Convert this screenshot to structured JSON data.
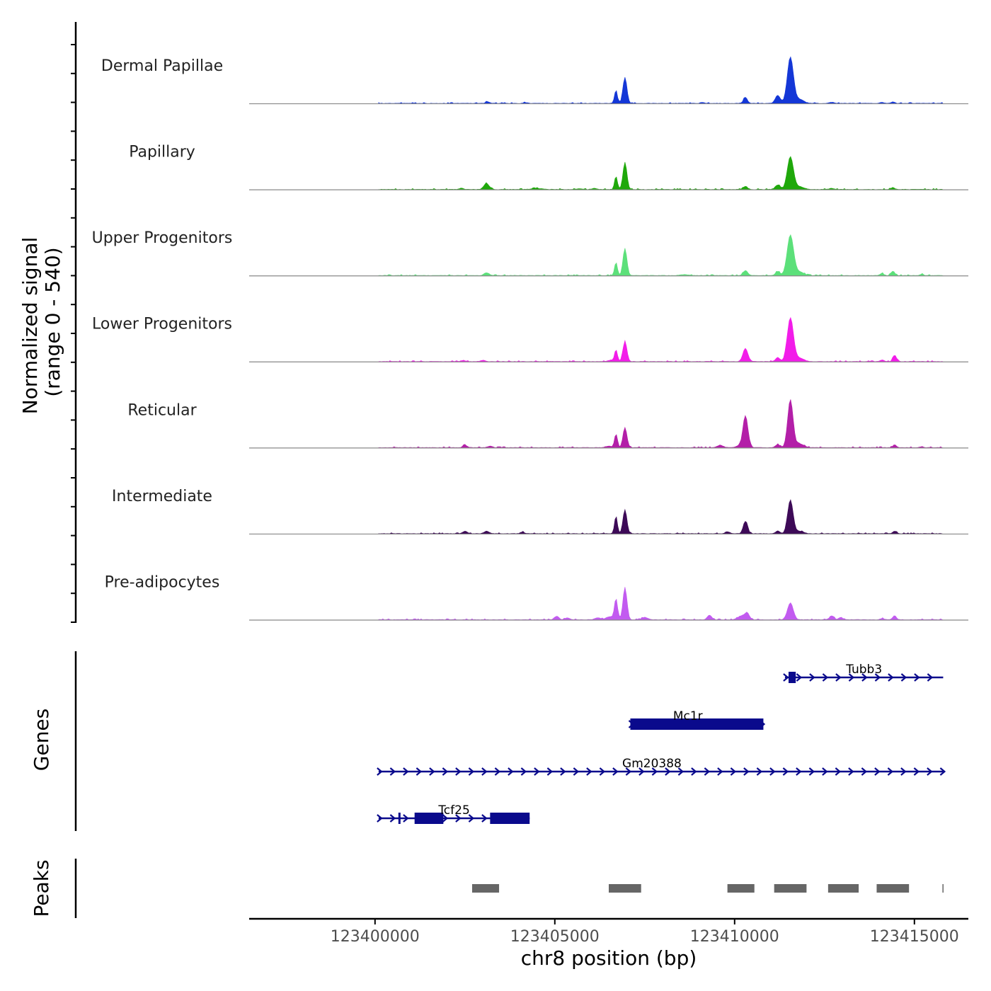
{
  "chart_data": {
    "type": "area",
    "title": "",
    "xlabel": "chr8 position (bp)",
    "ylabel": "Normalized signal",
    "ylabel_range": "(range 0 - 540)",
    "ylim": [
      0,
      540
    ],
    "xlim": [
      123396500,
      123416500
    ],
    "x_ticks": [
      123400000,
      123405000,
      123410000,
      123415000
    ],
    "x_tick_labels": [
      "123400000",
      "123405000",
      "123410000",
      "123415000"
    ],
    "signal_start": 123400100,
    "signal_end": 123415800,
    "tracks": [
      {
        "name": "Dermal Papillae",
        "color": "#1437d7",
        "peaks": [
          [
            123403130,
            8,
            60
          ],
          [
            123404200,
            4,
            60
          ],
          [
            123406700,
            66,
            40
          ],
          [
            123406950,
            130,
            55
          ],
          [
            123409100,
            4,
            60
          ],
          [
            123410300,
            30,
            55
          ],
          [
            123411200,
            40,
            70
          ],
          [
            123411550,
            230,
            85
          ],
          [
            123411800,
            20,
            120
          ],
          [
            123412700,
            6,
            60
          ],
          [
            123414100,
            6,
            50
          ],
          [
            123414400,
            8,
            50
          ]
        ]
      },
      {
        "name": "Papillary",
        "color": "#1fa80b",
        "peaks": [
          [
            123402400,
            6,
            60
          ],
          [
            123403100,
            30,
            75
          ],
          [
            123404500,
            5,
            150
          ],
          [
            123405700,
            4,
            80
          ],
          [
            123406100,
            6,
            60
          ],
          [
            123406700,
            66,
            40
          ],
          [
            123406950,
            135,
            55
          ],
          [
            123410300,
            16,
            55
          ],
          [
            123411200,
            22,
            70
          ],
          [
            123411550,
            162,
            85
          ],
          [
            123411800,
            14,
            120
          ],
          [
            123412700,
            6,
            60
          ],
          [
            123414400,
            10,
            50
          ]
        ]
      },
      {
        "name": "Upper Progenitors",
        "color": "#5ce07a",
        "peaks": [
          [
            123403100,
            14,
            70
          ],
          [
            123406700,
            66,
            40
          ],
          [
            123406950,
            135,
            55
          ],
          [
            123408600,
            4,
            100
          ],
          [
            123410300,
            25,
            60
          ],
          [
            123411200,
            20,
            60
          ],
          [
            123411550,
            200,
            90
          ],
          [
            123411800,
            18,
            120
          ],
          [
            123414100,
            10,
            50
          ],
          [
            123414400,
            22,
            50
          ],
          [
            123415200,
            6,
            50
          ]
        ]
      },
      {
        "name": "Lower Progenitors",
        "color": "#f21ce9",
        "peaks": [
          [
            123402450,
            6,
            60
          ],
          [
            123403000,
            6,
            60
          ],
          [
            123406550,
            8,
            60
          ],
          [
            123406700,
            60,
            40
          ],
          [
            123406950,
            100,
            55
          ],
          [
            123410300,
            65,
            70
          ],
          [
            123411200,
            20,
            60
          ],
          [
            123411550,
            218,
            85
          ],
          [
            123411800,
            18,
            120
          ],
          [
            123414100,
            8,
            50
          ],
          [
            123414450,
            32,
            50
          ]
        ]
      },
      {
        "name": "Reticular",
        "color": "#b31fa8",
        "peaks": [
          [
            123402500,
            12,
            60
          ],
          [
            123403200,
            8,
            60
          ],
          [
            123406500,
            8,
            80
          ],
          [
            123406700,
            68,
            40
          ],
          [
            123406950,
            100,
            55
          ],
          [
            123409600,
            12,
            80
          ],
          [
            123410100,
            8,
            80
          ],
          [
            123410300,
            160,
            70
          ],
          [
            123411200,
            15,
            60
          ],
          [
            123411550,
            238,
            75
          ],
          [
            123411800,
            18,
            120
          ],
          [
            123414450,
            14,
            50
          ],
          [
            123415200,
            5,
            50
          ]
        ]
      },
      {
        "name": "Intermediate",
        "color": "#3d0a57",
        "peaks": [
          [
            123402500,
            12,
            60
          ],
          [
            123403100,
            12,
            70
          ],
          [
            123404100,
            8,
            60
          ],
          [
            123406700,
            88,
            40
          ],
          [
            123406950,
            120,
            55
          ],
          [
            123409800,
            10,
            60
          ],
          [
            123410300,
            62,
            60
          ],
          [
            123411200,
            14,
            60
          ],
          [
            123411550,
            168,
            75
          ],
          [
            123411800,
            12,
            120
          ],
          [
            123414450,
            12,
            50
          ]
        ]
      },
      {
        "name": "Pre-adipocytes",
        "color": "#c25bf0",
        "peaks": [
          [
            123405050,
            18,
            60
          ],
          [
            123405350,
            10,
            60
          ],
          [
            123406200,
            10,
            80
          ],
          [
            123406500,
            14,
            80
          ],
          [
            123406700,
            106,
            45
          ],
          [
            123406950,
            162,
            55
          ],
          [
            123407500,
            12,
            80
          ],
          [
            123409300,
            22,
            60
          ],
          [
            123410200,
            20,
            100
          ],
          [
            123410350,
            30,
            60
          ],
          [
            123411550,
            84,
            80
          ],
          [
            123412700,
            20,
            60
          ],
          [
            123412950,
            12,
            50
          ],
          [
            123414100,
            6,
            50
          ],
          [
            123414450,
            20,
            50
          ]
        ]
      }
    ],
    "genes_panel_label": "Genes",
    "genes": [
      {
        "name": "Tubb3",
        "start": 123411400,
        "end": 123415800,
        "strand": "+",
        "exons": [
          [
            123411500,
            123411700
          ]
        ],
        "label_pos": 123413600
      },
      {
        "name": "Mc1r",
        "start": 123407100,
        "end": 123410800,
        "strand": "+",
        "exons": [
          [
            123407100,
            123410800
          ]
        ],
        "label_pos": 123408700
      },
      {
        "name": "Gm20388",
        "start": 123400100,
        "end": 123415800,
        "strand": "+",
        "exons": [],
        "label_pos": 123407700
      },
      {
        "name": "Tcf25",
        "start": 123400100,
        "end": 123404300,
        "strand": "+",
        "exons": [
          [
            123400650,
            123400700
          ],
          [
            123401100,
            123401900
          ],
          [
            123403200,
            123404300
          ]
        ],
        "label_pos": 123402200
      }
    ],
    "peaks_panel_label": "Peaks",
    "peak_regions": [
      [
        123402700,
        123403450
      ],
      [
        123406500,
        123407400
      ],
      [
        123409800,
        123410550
      ],
      [
        123411100,
        123412000
      ],
      [
        123412600,
        123413450
      ],
      [
        123413950,
        123414850
      ],
      [
        123415780,
        123415800
      ]
    ]
  }
}
